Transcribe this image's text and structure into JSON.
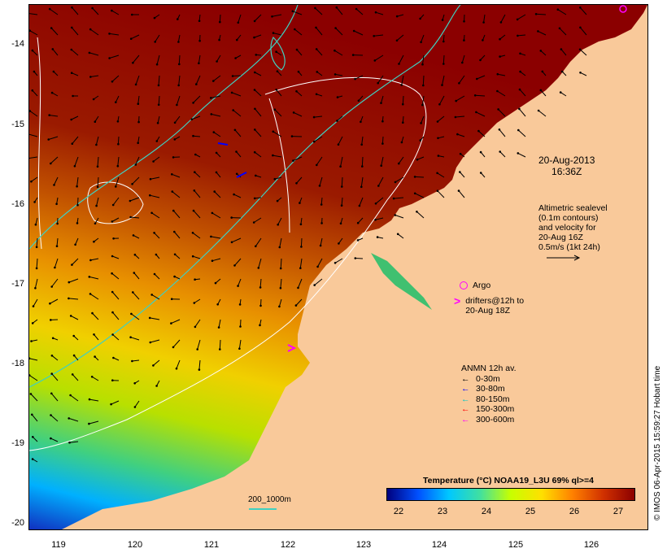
{
  "timestamp_lines": [
    "20-Aug-2013",
    "16:36Z"
  ],
  "altimetry_note": [
    "Altimetric sealevel",
    "(0.1m contours)",
    "and velocity for",
    "20-Aug 16Z",
    "0.5m/s (1kt 24h)"
  ],
  "argo_label": "Argo",
  "drifters_label": [
    "drifters@12h to",
    "20-Aug 18Z"
  ],
  "anmn": {
    "title": "ANMN 12h av.",
    "items": [
      {
        "label": "0-30m",
        "color": "#000000"
      },
      {
        "label": "30-80m",
        "color": "#0000ff"
      },
      {
        "label": "80-150m",
        "color": "#00c8c8"
      },
      {
        "label": "150-300m",
        "color": "#ff0000"
      },
      {
        "label": "300-600m",
        "color": "#ff00ff"
      }
    ]
  },
  "colorbar": {
    "title": "Temperature (°C) NOAA19_L3U 69% ql>=4",
    "ticks": [
      "22",
      "23",
      "24",
      "25",
      "26",
      "27"
    ],
    "colors": [
      "#00007f",
      "#0050ff",
      "#00c8ff",
      "#40e0a0",
      "#c8ff00",
      "#ffe000",
      "#ff8000",
      "#d03000",
      "#8b0000"
    ]
  },
  "scale_bar_label": "200_1000m",
  "credit": "© IMOS 06-Apr-2015 15:59:27 Hobart time",
  "y_axis_labels": [
    "-14",
    "-15",
    "-16",
    "-17",
    "-18",
    "-19",
    "-20"
  ],
  "x_axis_labels": [
    "119",
    "120",
    "121",
    "122",
    "123",
    "124",
    "125",
    "126"
  ],
  "colors": {
    "land": "#f9c99a",
    "warm_water": "#9a0a00",
    "contour_white": "#ffffff",
    "isobath_cyan": "#40d0c0"
  }
}
